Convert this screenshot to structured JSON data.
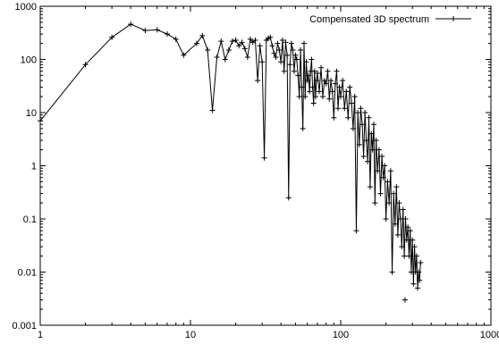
{
  "chart_data": {
    "type": "line",
    "title": "",
    "xlabel": "",
    "ylabel": "",
    "x_scale": "log",
    "y_scale": "log",
    "xlim": [
      1,
      1000
    ],
    "ylim": [
      0.001,
      1000
    ],
    "grid": false,
    "legend_position": "top-right",
    "x_tick_labels": [
      "1",
      "10",
      "100",
      "1000"
    ],
    "y_tick_labels": [
      "0.001",
      "0.01",
      "0.1",
      "1",
      "10",
      "100",
      "1000"
    ],
    "series": [
      {
        "name": "Compensated 3D spectrum",
        "color": "#000000",
        "marker": "plus",
        "points": [
          [
            1,
            7
          ],
          [
            2,
            80
          ],
          [
            3,
            260
          ],
          [
            4,
            460
          ],
          [
            5,
            350
          ],
          [
            6,
            360
          ],
          [
            7,
            300
          ],
          [
            8,
            240
          ],
          [
            9,
            120
          ],
          [
            11,
            200
          ],
          [
            12,
            280
          ],
          [
            13,
            150
          ],
          [
            14,
            11
          ],
          [
            15,
            110
          ],
          [
            16,
            220
          ],
          [
            17,
            100
          ],
          [
            18,
            150
          ],
          [
            19,
            220
          ],
          [
            20,
            230
          ],
          [
            21,
            180
          ],
          [
            22,
            210
          ],
          [
            23,
            160
          ],
          [
            24,
            110
          ],
          [
            25,
            240
          ],
          [
            26,
            210
          ],
          [
            27,
            230
          ],
          [
            28,
            40
          ],
          [
            29,
            180
          ],
          [
            30,
            90
          ],
          [
            31,
            1.4
          ],
          [
            32,
            230
          ],
          [
            33,
            250
          ],
          [
            34,
            260
          ],
          [
            35,
            180
          ],
          [
            36,
            130
          ],
          [
            37,
            110
          ],
          [
            38,
            200
          ],
          [
            39,
            150
          ],
          [
            40,
            90
          ],
          [
            41,
            230
          ],
          [
            42,
            60
          ],
          [
            43,
            210
          ],
          [
            44,
            120
          ],
          [
            45,
            0.25
          ],
          [
            46,
            80
          ],
          [
            47,
            200
          ],
          [
            48,
            150
          ],
          [
            49,
            60
          ],
          [
            50,
            120
          ],
          [
            51,
            100
          ],
          [
            52,
            50
          ],
          [
            53,
            20
          ],
          [
            54,
            150
          ],
          [
            55,
            30
          ],
          [
            56,
            5
          ],
          [
            57,
            200
          ],
          [
            58,
            20
          ],
          [
            59,
            90
          ],
          [
            60,
            40
          ],
          [
            61,
            50
          ],
          [
            62,
            25
          ],
          [
            63,
            60
          ],
          [
            64,
            100
          ],
          [
            65,
            30
          ],
          [
            66,
            15
          ],
          [
            67,
            60
          ],
          [
            68,
            20
          ],
          [
            69,
            40
          ],
          [
            70,
            55
          ],
          [
            72,
            25
          ],
          [
            74,
            70
          ],
          [
            76,
            20
          ],
          [
            78,
            40
          ],
          [
            80,
            35
          ],
          [
            82,
            60
          ],
          [
            84,
            18
          ],
          [
            86,
            40
          ],
          [
            88,
            25
          ],
          [
            90,
            8
          ],
          [
            92,
            35
          ],
          [
            94,
            60
          ],
          [
            96,
            12
          ],
          [
            98,
            30
          ],
          [
            100,
            20
          ],
          [
            103,
            40
          ],
          [
            106,
            12
          ],
          [
            109,
            25
          ],
          [
            112,
            8
          ],
          [
            115,
            30
          ],
          [
            118,
            15
          ],
          [
            121,
            5
          ],
          [
            124,
            20
          ],
          [
            127,
            0.06
          ],
          [
            130,
            10
          ],
          [
            133,
            2.5
          ],
          [
            136,
            12
          ],
          [
            139,
            6
          ],
          [
            142,
            1.5
          ],
          [
            145,
            10
          ],
          [
            148,
            3
          ],
          [
            151,
            1.2
          ],
          [
            154,
            8
          ],
          [
            157,
            0.4
          ],
          [
            160,
            4
          ],
          [
            163,
            2
          ],
          [
            166,
            6
          ],
          [
            169,
            0.2
          ],
          [
            172,
            3
          ],
          [
            176,
            0.8
          ],
          [
            180,
            2
          ],
          [
            184,
            0.3
          ],
          [
            188,
            1.5
          ],
          [
            192,
            0.6
          ],
          [
            196,
            1
          ],
          [
            200,
            0.1
          ],
          [
            205,
            0.5
          ],
          [
            210,
            0.2
          ],
          [
            215,
            0.8
          ],
          [
            220,
            0.01
          ],
          [
            225,
            0.3
          ],
          [
            230,
            0.08
          ],
          [
            235,
            0.4
          ],
          [
            240,
            0.05
          ],
          [
            245,
            0.2
          ],
          [
            250,
            0.1
          ],
          [
            255,
            0.03
          ],
          [
            260,
            0.15
          ],
          [
            265,
            0.02
          ],
          [
            270,
            0.1
          ],
          [
            275,
            0.04
          ],
          [
            280,
            0.07
          ],
          [
            285,
            0.02
          ],
          [
            290,
            0.06
          ],
          [
            295,
            0.01
          ],
          [
            300,
            0.04
          ],
          [
            305,
            0.006
          ],
          [
            310,
            0.03
          ],
          [
            315,
            0.01
          ],
          [
            320,
            0.02
          ],
          [
            325,
            0.005
          ],
          [
            330,
            0.01
          ],
          [
            335,
            0.007
          ],
          [
            340,
            0.015
          ]
        ]
      },
      {
        "name": "",
        "color": "#000000",
        "marker": "plus",
        "line": false,
        "points": [
          [
            268,
            0.003
          ]
        ]
      }
    ]
  }
}
